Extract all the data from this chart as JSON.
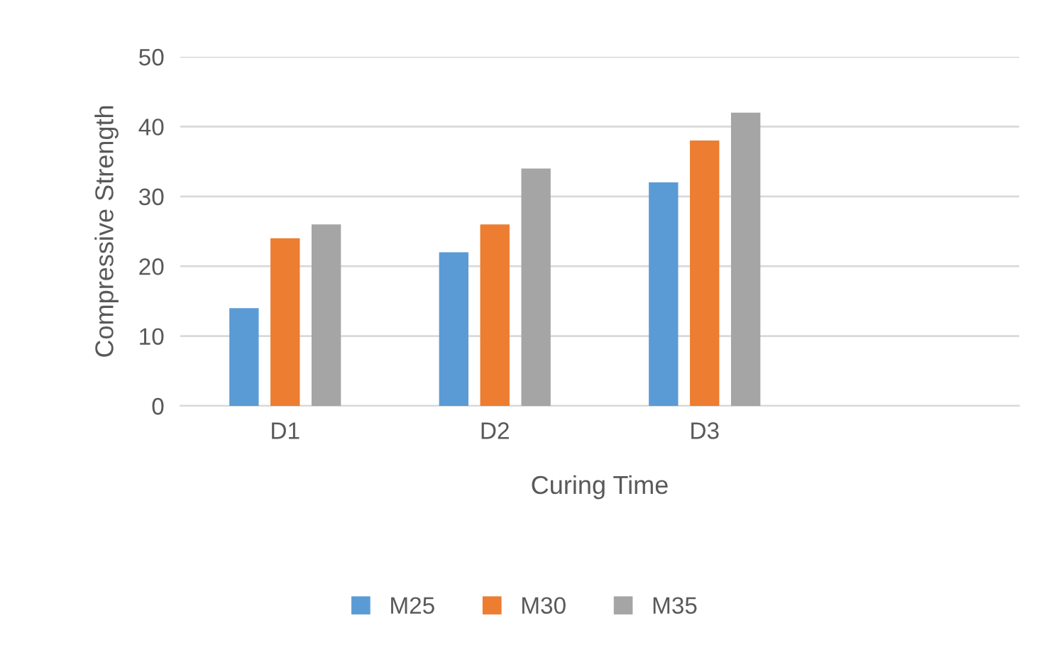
{
  "chart_data": {
    "type": "bar",
    "xlabel": "Curing Time",
    "ylabel": "Compressive Strength",
    "categories": [
      "D1",
      "D2",
      "D3",
      null
    ],
    "series": [
      {
        "name": "M25",
        "color": "#5b9bd5",
        "values": [
          14,
          22,
          32,
          null
        ]
      },
      {
        "name": "M30",
        "color": "#ed7d31",
        "values": [
          24,
          26,
          38,
          null
        ]
      },
      {
        "name": "M35",
        "color": "#a5a5a5",
        "values": [
          26,
          34,
          42,
          null
        ]
      }
    ],
    "ylim": [
      0,
      50
    ],
    "yticks": [
      0,
      10,
      20,
      30,
      40,
      50
    ],
    "grid": "y",
    "legend": "bottom"
  }
}
